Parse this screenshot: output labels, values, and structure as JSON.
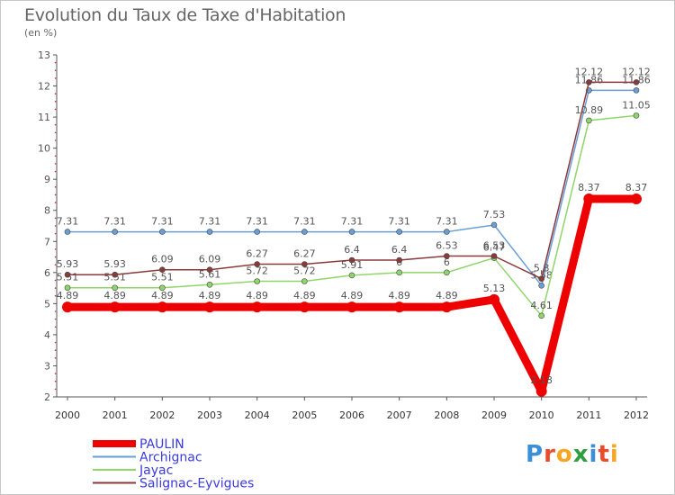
{
  "header": {
    "title": "Evolution du Taux de Taxe d'Habitation",
    "unit": "(en %)"
  },
  "logo": {
    "letters": [
      "P",
      "r",
      "o",
      "x",
      "i",
      "t",
      "i"
    ],
    "colors": [
      "#3a8fd8",
      "#e94b2b",
      "#f5a623",
      "#2f9e3f",
      "#3a8fd8",
      "#e94b2b",
      "#f5a623"
    ]
  },
  "chart_data": {
    "type": "line",
    "title": "Evolution du Taux de Taxe d'Habitation",
    "ylabel": "(en %)",
    "xlabel": "",
    "x": [
      "2000",
      "2001",
      "2002",
      "2003",
      "2004",
      "2005",
      "2006",
      "2007",
      "2008",
      "2009",
      "2010",
      "2011",
      "2012"
    ],
    "ylim": [
      2,
      13
    ],
    "yticks": [
      2,
      3,
      4,
      5,
      6,
      7,
      8,
      9,
      10,
      11,
      12,
      13
    ],
    "grid": false,
    "legend_position": "bottom-left",
    "series": [
      {
        "name": "PAULIN",
        "color": "#ee0000",
        "values": [
          4.89,
          4.89,
          4.89,
          4.89,
          4.89,
          4.89,
          4.89,
          4.89,
          4.89,
          5.13,
          2.18,
          8.37,
          8.37
        ],
        "labels": [
          "4.89",
          "4.89",
          "4.89",
          "4.89",
          "4.89",
          "4.89",
          "4.89",
          "4.89",
          "4.89",
          "5.13",
          "2.18",
          "8.37",
          "8.37"
        ]
      },
      {
        "name": "Archignac",
        "color": "#6a9fd4",
        "values": [
          7.31,
          7.31,
          7.31,
          7.31,
          7.31,
          7.31,
          7.31,
          7.31,
          7.31,
          7.53,
          5.58,
          11.86,
          11.86
        ],
        "labels": [
          "7.31",
          "7.31",
          "7.31",
          "7.31",
          "7.31",
          "7.31",
          "7.31",
          "7.31",
          "7.31",
          "7.53",
          "5.58",
          "11.86",
          "11.86"
        ]
      },
      {
        "name": "Jayac",
        "color": "#8fd66a",
        "values": [
          5.51,
          5.51,
          5.51,
          5.61,
          5.72,
          5.72,
          5.91,
          6,
          6,
          6.47,
          4.61,
          10.89,
          11.05
        ],
        "labels": [
          "5.51",
          "5.51",
          "5.51",
          "5.61",
          "5.72",
          "5.72",
          "5.91",
          "6",
          "6",
          "6.47",
          "4.61",
          "10.89",
          "11.05"
        ]
      },
      {
        "name": "Salignac-Eyvigues",
        "color": "#8b3a3a",
        "values": [
          5.93,
          5.93,
          6.09,
          6.09,
          6.27,
          6.27,
          6.4,
          6.4,
          6.53,
          6.53,
          5.8,
          12.12,
          12.12
        ],
        "labels": [
          "5.93",
          "5.93",
          "6.09",
          "6.09",
          "6.27",
          "6.27",
          "6.4",
          "6.4",
          "6.53",
          "6.53",
          "5.8",
          "12.12",
          "12.12"
        ]
      }
    ]
  }
}
